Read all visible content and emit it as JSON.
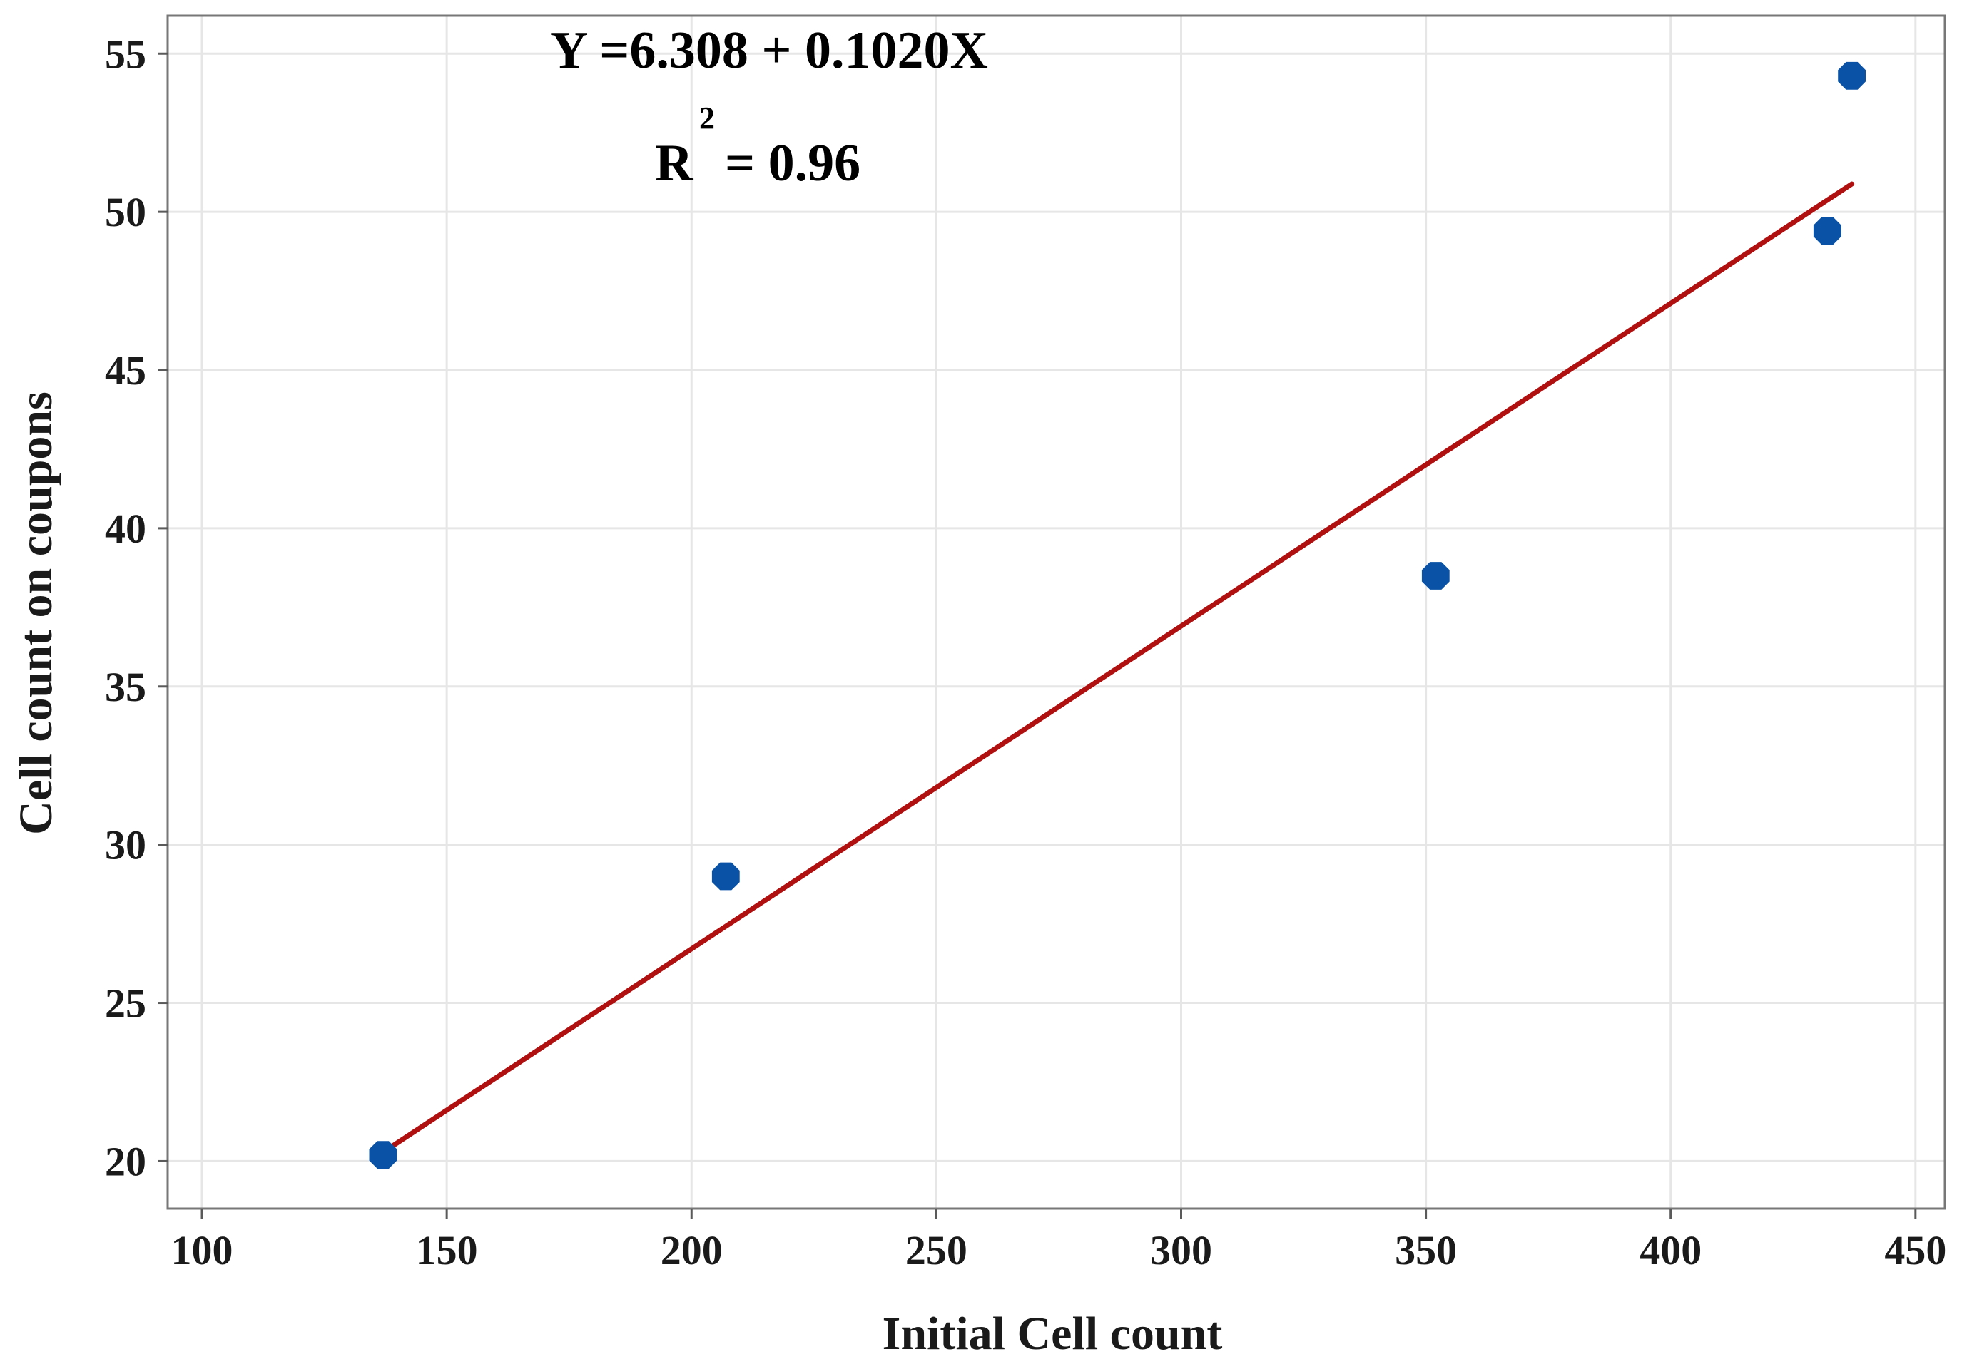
{
  "chart_data": {
    "type": "scatter",
    "title": "",
    "xlabel": "Initial Cell count",
    "ylabel": "Cell count on coupons",
    "xlim": [
      93,
      456
    ],
    "ylim": [
      18.5,
      56.2
    ],
    "x_ticks": [
      100,
      150,
      200,
      250,
      300,
      350,
      400,
      450
    ],
    "y_ticks": [
      20,
      25,
      30,
      35,
      40,
      45,
      50,
      55
    ],
    "grid": true,
    "series": [
      {
        "name": "observations",
        "type": "scatter",
        "x": [
          137,
          207,
          352,
          432,
          437
        ],
        "y": [
          20.2,
          29.0,
          38.5,
          49.4,
          54.3
        ],
        "color": "#0a52a6"
      }
    ],
    "fit_line": {
      "intercept": 6.308,
      "slope": 0.102,
      "x_range": [
        137,
        437
      ],
      "color": "#b01010"
    },
    "annotations": {
      "equation": "Y =6.308 + 0.1020X",
      "r_label": "R",
      "r_superscript": "2",
      "r_value": "= 0.96"
    }
  }
}
